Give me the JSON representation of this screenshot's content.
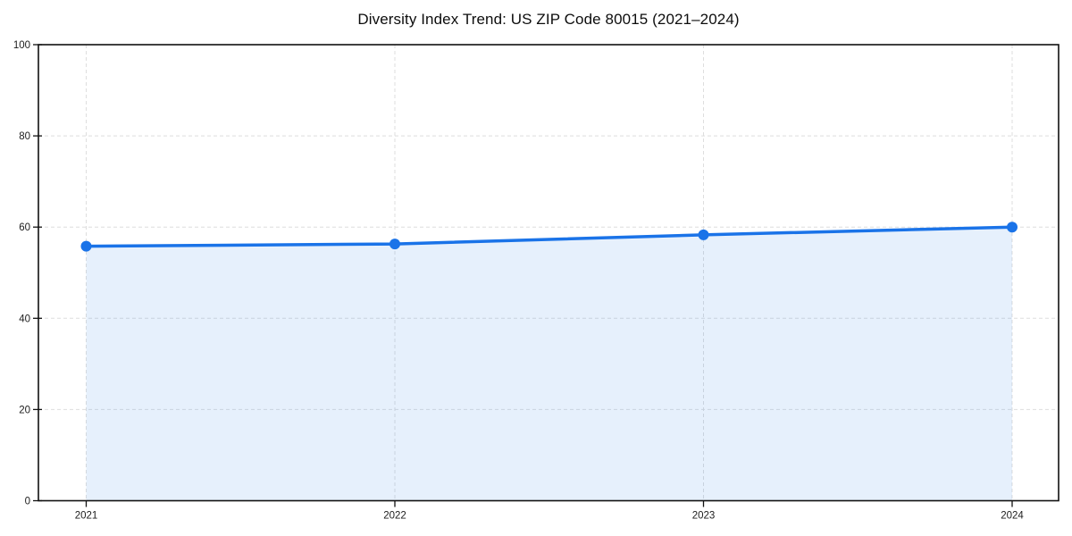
{
  "chart_data": {
    "type": "area",
    "title": "Diversity Index Trend: US ZIP Code 80015 (2021–2024)",
    "xlabel": "",
    "ylabel": "",
    "categories": [
      "2021",
      "2022",
      "2023",
      "2024"
    ],
    "series": [
      {
        "name": "Diversity Index",
        "values": [
          55.8,
          56.3,
          58.3,
          60.0
        ]
      }
    ],
    "ylim": [
      0,
      100
    ],
    "yticks": [
      0,
      20,
      40,
      60,
      80,
      100
    ],
    "grid": true,
    "grid_style": "dashed",
    "legend_position": "none",
    "marker": "circle",
    "area_opacity": 0.11,
    "colors": {
      "line": "#1a73e8",
      "area": "#1a73e8",
      "grid": "#dedede",
      "axis": "#111111",
      "tick_label": "#1c1c1c",
      "title": "#0d0d0d",
      "background": "#ffffff"
    }
  }
}
